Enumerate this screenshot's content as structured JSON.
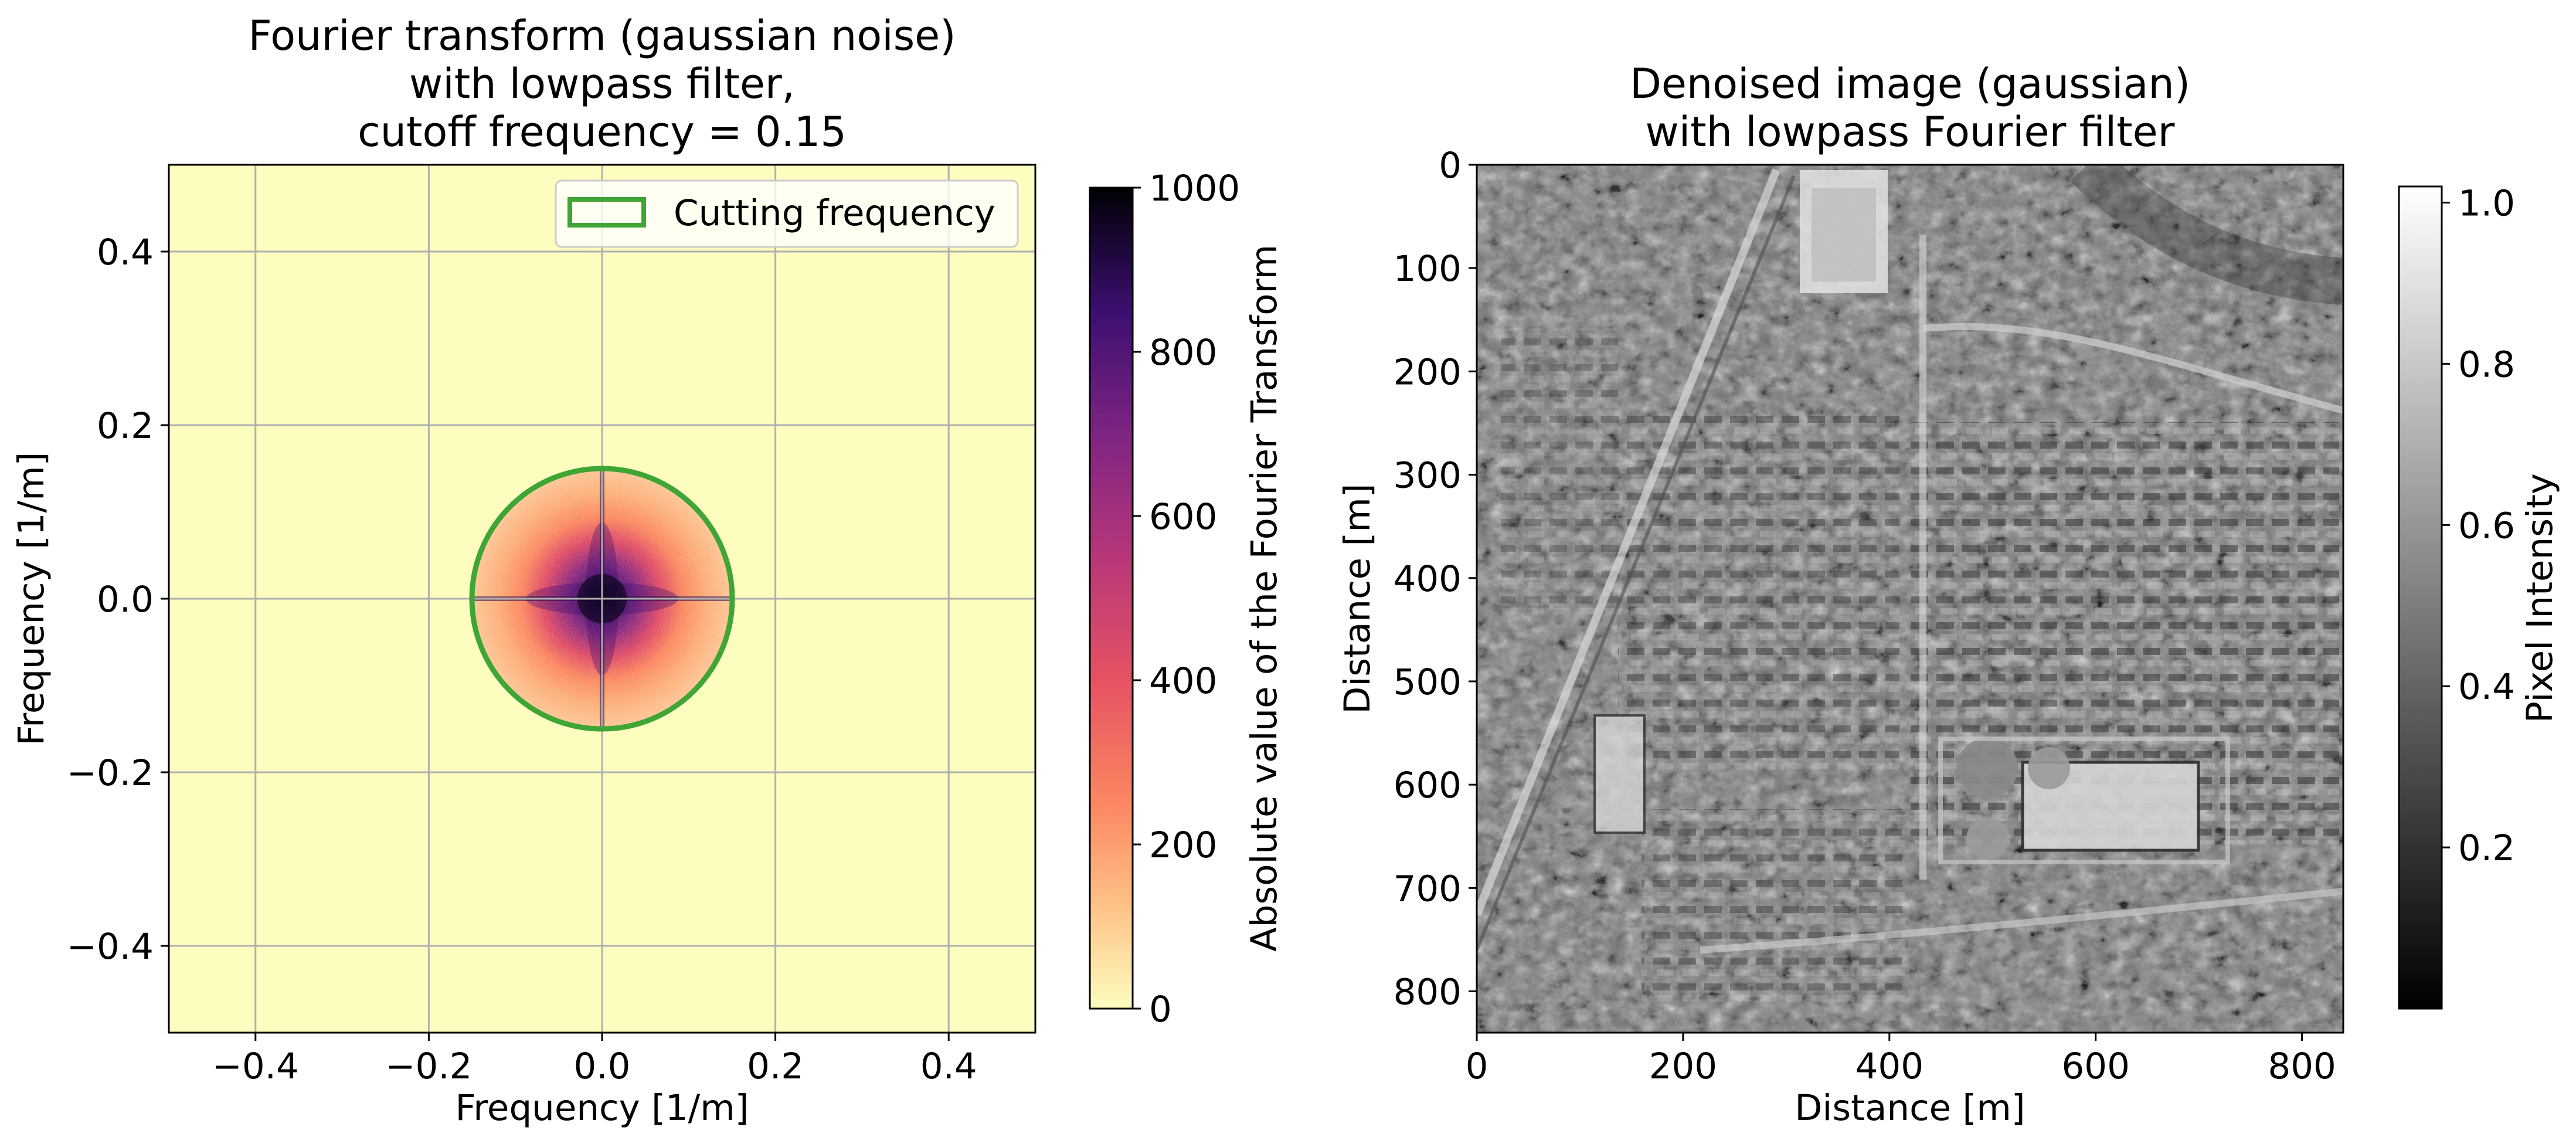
{
  "chart_data": [
    {
      "type": "heatmap",
      "title": [
        "Fourier transform (gaussian noise)",
        "with lowpass filter,",
        "cutoff frequency = 0.15"
      ],
      "xlabel": "Frequency [1/m]",
      "ylabel": "Frequency [1/m]",
      "xlim": [
        -0.5,
        0.5
      ],
      "ylim": [
        -0.5,
        0.5
      ],
      "xticks": [
        -0.4,
        -0.2,
        0.0,
        0.2,
        0.4
      ],
      "yticks": [
        -0.4,
        -0.2,
        0.0,
        0.2,
        0.4
      ],
      "xtick_labels": [
        "−0.4",
        "−0.2",
        "0.0",
        "0.2",
        "0.4"
      ],
      "ytick_labels": [
        "−0.4",
        "−0.2",
        "0.0",
        "0.2",
        "0.4"
      ],
      "grid": true,
      "cutoff_frequency": 0.15,
      "legend": {
        "placement": "top-right",
        "entries": [
          {
            "label": "Cutting frequency",
            "color": "#3fa535"
          }
        ]
      },
      "colorbar": {
        "label": "Absolute value of the Fourier Transform",
        "colormap": "magma_r",
        "range": [
          0,
          1000
        ],
        "ticks": [
          0,
          200,
          400,
          600,
          800,
          1000
        ],
        "tick_labels": [
          "0",
          "200",
          "400",
          "600",
          "800",
          "1000"
        ]
      },
      "colors": {
        "background": "#fcfdbf",
        "circle": "#3fa535",
        "grid": "#b0b0b0"
      }
    },
    {
      "type": "heatmap",
      "title": [
        "Denoised image (gaussian)",
        "with lowpass Fourier filter"
      ],
      "xlabel": "Distance [m]",
      "ylabel": "Distance [m]",
      "xlim": [
        0,
        840
      ],
      "ylim": [
        840,
        0
      ],
      "xticks": [
        0,
        200,
        400,
        600,
        800
      ],
      "yticks": [
        0,
        100,
        200,
        300,
        400,
        500,
        600,
        700,
        800
      ],
      "xtick_labels": [
        "0",
        "200",
        "400",
        "600",
        "800"
      ],
      "ytick_labels": [
        "0",
        "100",
        "200",
        "300",
        "400",
        "500",
        "600",
        "700",
        "800"
      ],
      "grid": false,
      "colorbar": {
        "label": "Pixel Intensity",
        "colormap": "gray",
        "range": [
          0,
          1.02
        ],
        "ticks": [
          0.2,
          0.4,
          0.6,
          0.8,
          1.0
        ],
        "tick_labels": [
          "0.2",
          "0.4",
          "0.6",
          "0.8",
          "1.0"
        ]
      }
    }
  ]
}
